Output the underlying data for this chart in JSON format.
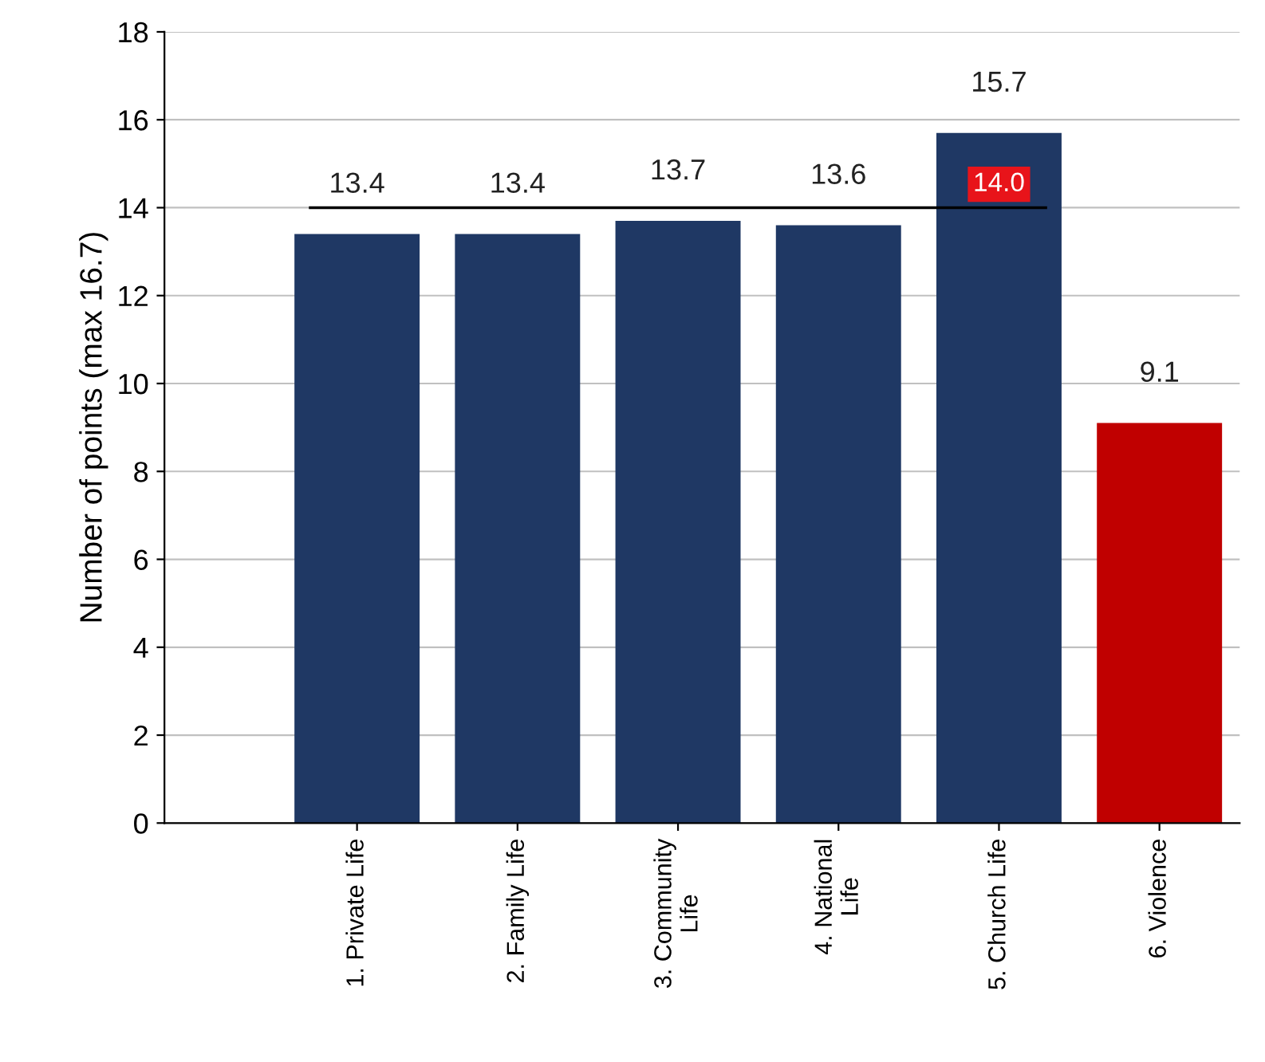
{
  "chart_data": {
    "type": "bar",
    "ylabel": "Number of points (max 16.7)",
    "categories": [
      "1. Private Life",
      "2. Family Life",
      "3. Community\nLife",
      "4. National\nLife",
      "5. Church Life",
      "6. Violence"
    ],
    "values": [
      13.4,
      13.4,
      13.7,
      13.6,
      15.7,
      9.1
    ],
    "colors": [
      "#1f3864",
      "#1f3864",
      "#1f3864",
      "#1f3864",
      "#1f3864",
      "#c00000"
    ],
    "ylim": [
      0,
      18
    ],
    "yticks": [
      0,
      2,
      4,
      6,
      8,
      10,
      12,
      14,
      16,
      18
    ],
    "grid": "y",
    "data_labels": true,
    "ref_lines": [
      {
        "axis": "y",
        "value": 14.0,
        "label": "14.0",
        "color": "#000000"
      }
    ]
  }
}
